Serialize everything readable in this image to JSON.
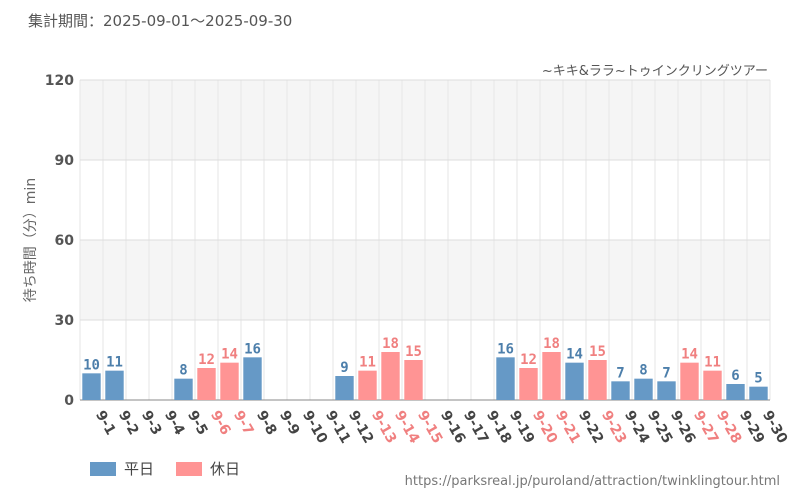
{
  "header": {
    "period": "集計期間：2025-09-01～2025-09-30",
    "subtitle": "~キキ&ララ~トゥインクリングツアー"
  },
  "source_url": "https://parksreal.jp/puroland/attraction/twinklingtour.html",
  "colors": {
    "weekday": "#6699c6",
    "holiday": "#ff9494",
    "holiday_text": "#f08080",
    "weekday_text": "#4d7fab"
  },
  "chart_data": {
    "type": "bar",
    "ylabel": "待ち時間（分）min",
    "ylim": [
      0,
      120
    ],
    "yticks": [
      0,
      30,
      60,
      90,
      120
    ],
    "legend": [
      {
        "key": "weekday",
        "label": "平日"
      },
      {
        "key": "holiday",
        "label": "休日"
      }
    ],
    "categories": [
      "9-1",
      "9-2",
      "9-3",
      "9-4",
      "9-5",
      "9-6",
      "9-7",
      "9-8",
      "9-9",
      "9-10",
      "9-11",
      "9-12",
      "9-13",
      "9-14",
      "9-15",
      "9-16",
      "9-17",
      "9-18",
      "9-19",
      "9-20",
      "9-21",
      "9-22",
      "9-23",
      "9-24",
      "9-25",
      "9-26",
      "9-27",
      "9-28",
      "9-29",
      "9-30"
    ],
    "values": [
      10,
      11,
      null,
      null,
      8,
      12,
      14,
      16,
      null,
      null,
      null,
      9,
      11,
      18,
      15,
      null,
      null,
      null,
      16,
      12,
      18,
      14,
      15,
      7,
      8,
      7,
      14,
      11,
      6,
      5
    ],
    "day_type": [
      "weekday",
      "weekday",
      "weekday",
      "weekday",
      "weekday",
      "holiday",
      "holiday",
      "weekday",
      "weekday",
      "weekday",
      "weekday",
      "weekday",
      "holiday",
      "holiday",
      "holiday",
      "weekday",
      "weekday",
      "weekday",
      "weekday",
      "holiday",
      "holiday",
      "weekday",
      "holiday",
      "weekday",
      "weekday",
      "weekday",
      "holiday",
      "holiday",
      "weekday",
      "weekday"
    ]
  }
}
